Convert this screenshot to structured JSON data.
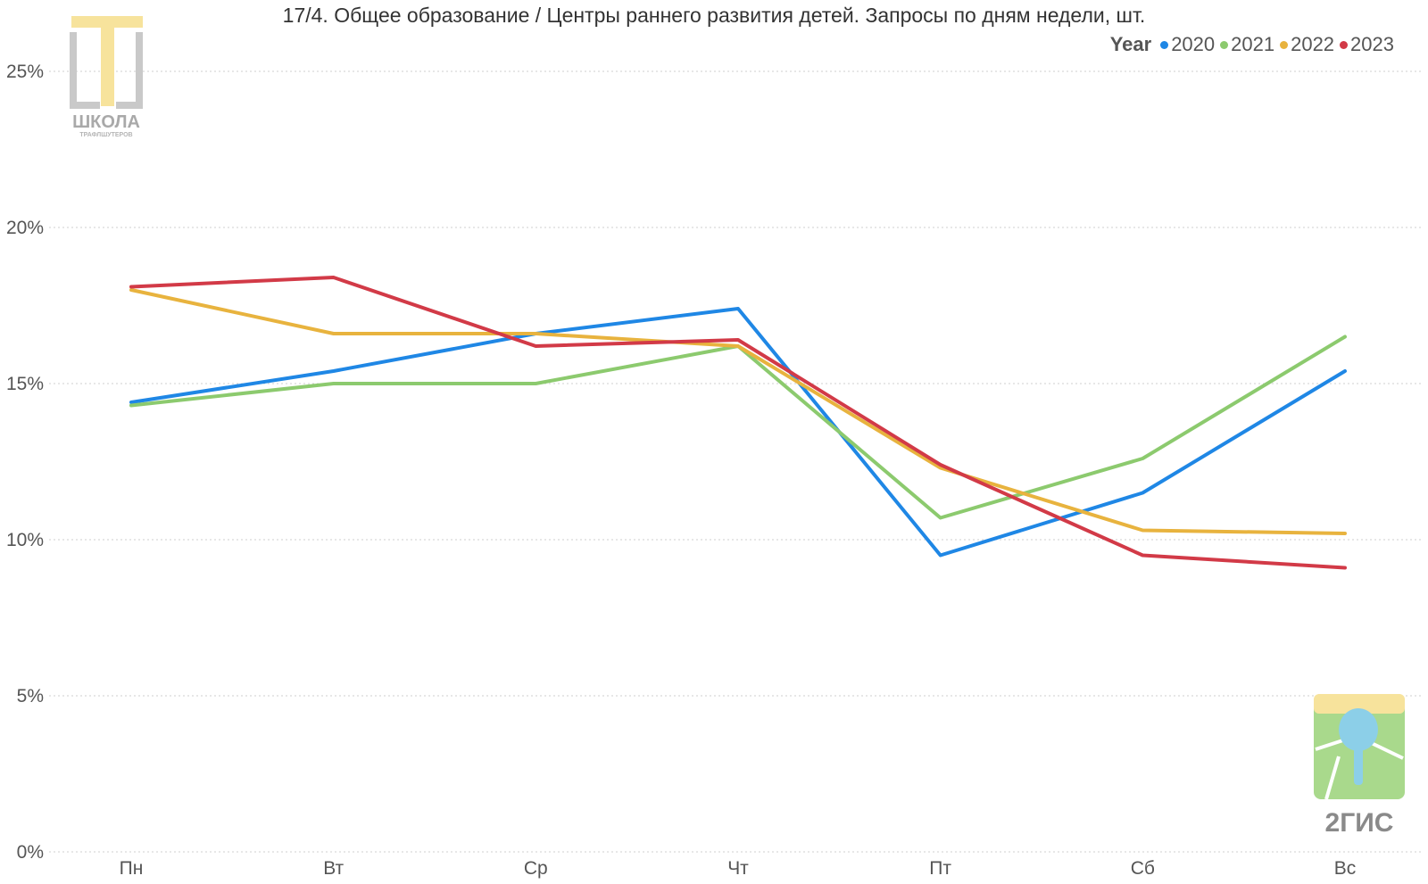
{
  "title": "17/4. Общее образование / Центры раннего развития детей. Запросы по дням недели, шт.",
  "legend": {
    "title": "Year",
    "items": [
      {
        "label": "2020",
        "color": "#1f87e5"
      },
      {
        "label": "2021",
        "color": "#8cca6e"
      },
      {
        "label": "2022",
        "color": "#e8b33e"
      },
      {
        "label": "2023",
        "color": "#d23a47"
      }
    ]
  },
  "logos": {
    "school_name": "ШКОЛА",
    "school_sub": "ТРАФЛШУТЕРОВ",
    "brand": "2ГИС"
  },
  "chart_data": {
    "type": "line",
    "categories": [
      "Пн",
      "Вт",
      "Ср",
      "Чт",
      "Пт",
      "Сб",
      "Вс"
    ],
    "y_ticks": [
      "0%",
      "5%",
      "10%",
      "15%",
      "20%",
      "25%"
    ],
    "ylim": [
      0,
      25
    ],
    "grid": true,
    "legend_position": "top-right",
    "series": [
      {
        "name": "2020",
        "color": "#1f87e5",
        "values": [
          14.4,
          15.4,
          16.6,
          17.4,
          9.5,
          11.5,
          15.4
        ]
      },
      {
        "name": "2021",
        "color": "#8cca6e",
        "values": [
          14.3,
          15.0,
          15.0,
          16.2,
          10.7,
          12.6,
          16.5
        ]
      },
      {
        "name": "2022",
        "color": "#e8b33e",
        "values": [
          18.0,
          16.6,
          16.6,
          16.2,
          12.3,
          10.3,
          10.2
        ]
      },
      {
        "name": "2023",
        "color": "#d23a47",
        "values": [
          18.1,
          18.4,
          16.2,
          16.4,
          12.4,
          9.5,
          9.1
        ]
      }
    ]
  }
}
